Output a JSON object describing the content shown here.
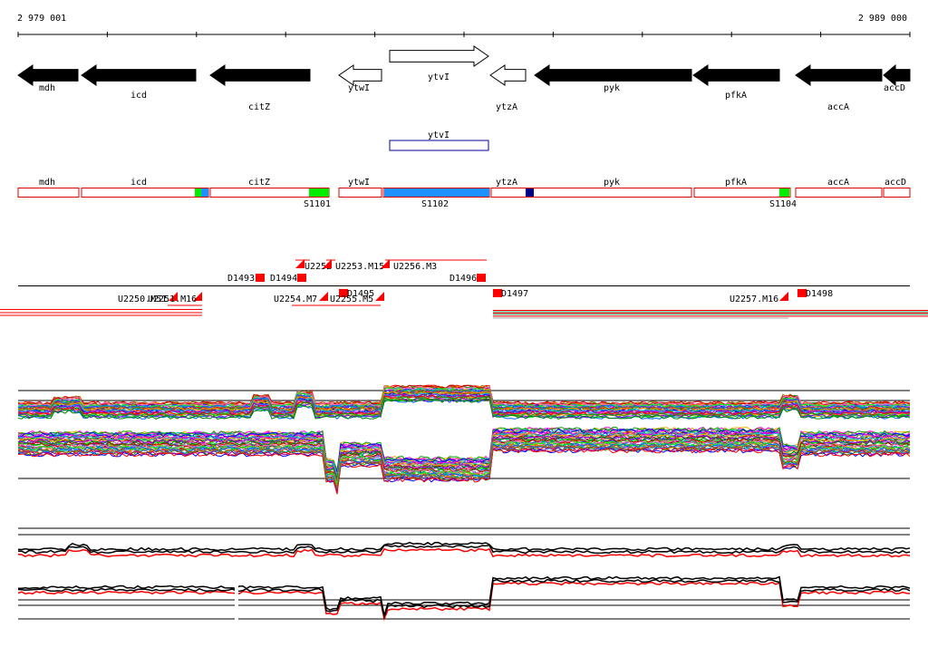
{
  "coordinates": {
    "start_label": "2 979 001",
    "end_label": "2 989 000"
  },
  "genes": [
    {
      "label": "mdh",
      "strand": "-",
      "filled": true
    },
    {
      "label": "icd",
      "strand": "-",
      "filled": true
    },
    {
      "label": "citZ",
      "strand": "-",
      "filled": true
    },
    {
      "label": "ytwI",
      "strand": "-",
      "filled": false
    },
    {
      "label": "ytvI",
      "strand": "+",
      "filled": false
    },
    {
      "label": "ytzA",
      "strand": "-",
      "filled": false
    },
    {
      "label": "pyk",
      "strand": "-",
      "filled": true
    },
    {
      "label": "pfkA",
      "strand": "-",
      "filled": true
    },
    {
      "label": "accA",
      "strand": "-",
      "filled": true
    },
    {
      "label": "accD",
      "strand": "-",
      "filled": true
    }
  ],
  "feature_box": {
    "label": "ytvI"
  },
  "segment_track": {
    "labels": [
      "mdh",
      "icd",
      "citZ",
      "ytwI",
      "ytzA",
      "pyk",
      "pfkA",
      "accA",
      "accD"
    ],
    "sites": [
      "S1101",
      "S1102",
      "S1104"
    ],
    "colors": {
      "outline": "#dd0000",
      "green": "#00ee00",
      "blue": "#1e90ff",
      "navy": "#00008b"
    }
  },
  "upshifts": [
    "U2250.M51",
    "U2251.M16",
    "U2252",
    "U2253.M15",
    "U2254.M7",
    "U2255.M5",
    "U2256.M3",
    "U2257.M16"
  ],
  "downshifts": [
    "D1493",
    "D1494",
    "D1495",
    "D1496",
    "D1497",
    "D1498"
  ],
  "colors": {
    "track_red": "#ff0000",
    "line_black": "#000000",
    "line_green": "#2e8b57"
  }
}
